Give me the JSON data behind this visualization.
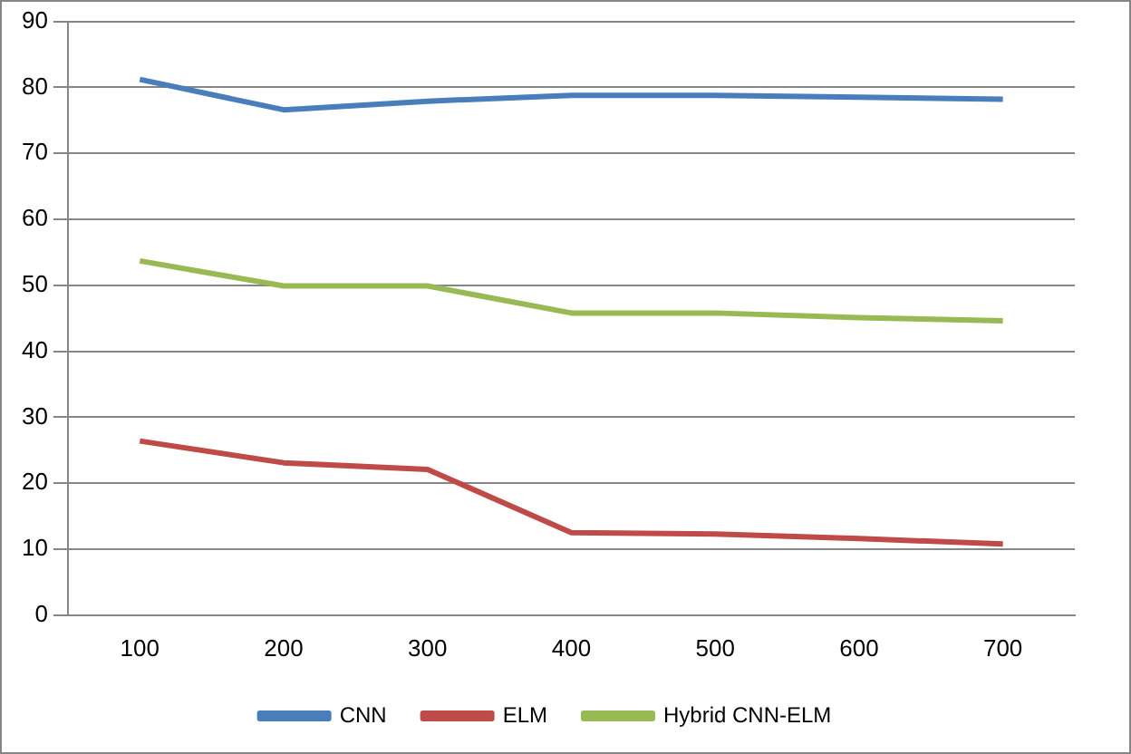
{
  "chart_data": {
    "type": "line",
    "categories": [
      "100",
      "200",
      "300",
      "400",
      "500",
      "600",
      "700"
    ],
    "series": [
      {
        "name": "CNN",
        "color": "#4a7ebb",
        "values": [
          81.2,
          76.6,
          77.9,
          78.8,
          78.8,
          78.5,
          78.2
        ]
      },
      {
        "name": "ELM",
        "color": "#be4b48",
        "values": [
          26.4,
          23.1,
          22.1,
          12.5,
          12.3,
          11.6,
          10.8
        ]
      },
      {
        "name": "Hybrid CNN-ELM",
        "color": "#98b954",
        "values": [
          53.7,
          49.9,
          49.9,
          45.8,
          45.8,
          45.1,
          44.6
        ]
      }
    ],
    "ylim": [
      0,
      90
    ],
    "yticks": [
      0,
      10,
      20,
      30,
      40,
      50,
      60,
      70,
      80,
      90
    ],
    "grid": "y",
    "legend": "bottom",
    "marker": "none",
    "line_style": "solid"
  }
}
